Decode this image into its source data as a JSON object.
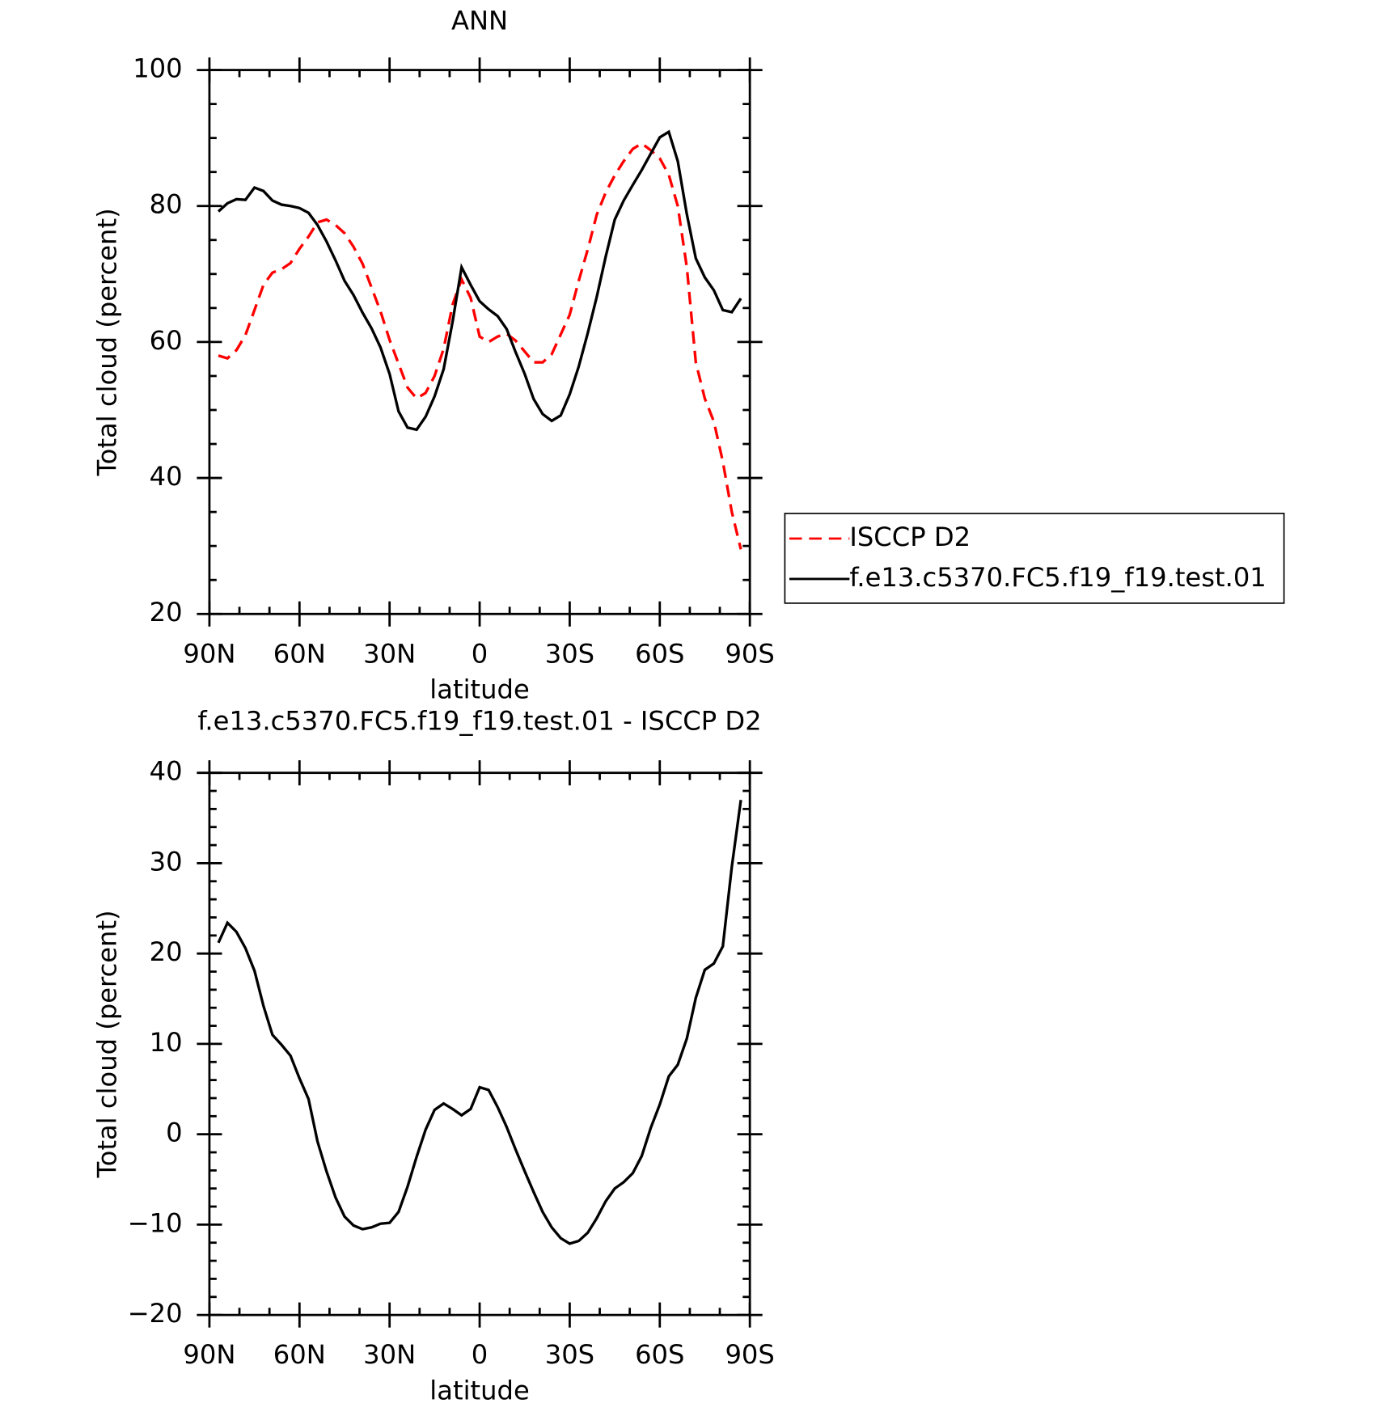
{
  "chart_data": [
    {
      "type": "line",
      "title": "ANN",
      "xlabel": "latitude",
      "ylabel": "Total cloud (percent)",
      "x": [
        87,
        84,
        81,
        78,
        75,
        72,
        69,
        66,
        63,
        60,
        57,
        54,
        51,
        48,
        45,
        42,
        39,
        36,
        33,
        30,
        27,
        24,
        21,
        18,
        15,
        12,
        9,
        6,
        3,
        0,
        -3,
        -6,
        -9,
        -12,
        -15,
        -18,
        -21,
        -24,
        -27,
        -30,
        -33,
        -36,
        -39,
        -42,
        -45,
        -48,
        -51,
        -54,
        -57,
        -60,
        -63,
        -66,
        -69,
        -72,
        -75,
        -78,
        -81,
        -84,
        -87
      ],
      "series": [
        {
          "name": "ISCCP D2",
          "color": "#ff0000",
          "style": "dashed",
          "values": [
            58.0,
            57.6,
            58.8,
            61.0,
            64.7,
            68.4,
            70.2,
            70.7,
            71.6,
            73.7,
            75.5,
            77.6,
            78.0,
            77.2,
            76.0,
            74.0,
            71.5,
            68.0,
            64.5,
            60.3,
            56.8,
            53.3,
            51.7,
            52.5,
            55.0,
            59.0,
            65.5,
            69.2,
            66.5,
            60.8,
            60.0,
            60.8,
            61.2,
            60.2,
            58.6,
            57.0,
            57.0,
            58.2,
            61.1,
            64.0,
            69.0,
            73.6,
            78.7,
            82.0,
            84.5,
            86.6,
            88.4,
            89.2,
            88.2,
            87.0,
            84.6,
            80.0,
            71.0,
            57.0,
            51.7,
            48.3,
            42.4,
            35.0,
            29.5
          ]
        },
        {
          "name": "f.e13.c5370.FC5.f19_f19.test.01",
          "color": "#000000",
          "style": "solid",
          "values": [
            79.2,
            80.4,
            81.0,
            80.9,
            82.7,
            82.2,
            80.8,
            80.2,
            80.0,
            79.7,
            79.0,
            77.2,
            74.8,
            72.0,
            69.0,
            66.9,
            64.3,
            62.0,
            59.2,
            55.3,
            49.8,
            47.4,
            47.1,
            49.0,
            52.0,
            56.0,
            63.0,
            71.0,
            68.4,
            66.0,
            64.8,
            63.8,
            61.9,
            58.5,
            55.3,
            51.6,
            49.4,
            48.4,
            49.2,
            52.3,
            56.4,
            61.3,
            66.6,
            72.6,
            78.0,
            80.8,
            83.1,
            85.3,
            87.7,
            90.1,
            90.9,
            86.6,
            78.8,
            72.3,
            69.5,
            67.6,
            64.7,
            64.4,
            66.4
          ]
        }
      ],
      "xlim": [
        90,
        -90
      ],
      "xticks": [
        {
          "value": 90,
          "label": "90N"
        },
        {
          "value": 60,
          "label": "60N"
        },
        {
          "value": 30,
          "label": "30N"
        },
        0,
        {
          "value": -30,
          "label": "30S"
        },
        {
          "value": -60,
          "label": "60S"
        },
        {
          "value": -90,
          "label": "90S"
        }
      ],
      "ylim": [
        20,
        100
      ],
      "yticks": [
        20,
        40,
        60,
        80,
        100
      ],
      "x_minor_per_major": 3,
      "y_minor_per_major": 4,
      "legend": "outside-right"
    },
    {
      "type": "line",
      "title": "f.e13.c5370.FC5.f19_f19.test.01 - ISCCP D2",
      "xlabel": "latitude",
      "ylabel": "Total cloud (percent)",
      "x": [
        87,
        84,
        81,
        78,
        75,
        72,
        69,
        66,
        63,
        60,
        57,
        54,
        51,
        48,
        45,
        42,
        39,
        36,
        33,
        30,
        27,
        24,
        21,
        18,
        15,
        12,
        9,
        6,
        3,
        0,
        -3,
        -6,
        -9,
        -12,
        -15,
        -18,
        -21,
        -24,
        -27,
        -30,
        -33,
        -36,
        -39,
        -42,
        -45,
        -48,
        -51,
        -54,
        -57,
        -60,
        -63,
        -66,
        -69,
        -72,
        -75,
        -78,
        -81,
        -84,
        -87
      ],
      "color": "#000000",
      "values": [
        21.2,
        23.4,
        22.4,
        20.6,
        18.1,
        14.2,
        11.0,
        9.9,
        8.7,
        6.2,
        3.9,
        -0.8,
        -4.1,
        -7.0,
        -9.1,
        -10.1,
        -10.5,
        -10.3,
        -9.9,
        -9.8,
        -8.6,
        -5.8,
        -2.5,
        0.5,
        2.7,
        3.4,
        2.8,
        2.1,
        2.8,
        5.2,
        4.9,
        3.0,
        0.8,
        -1.7,
        -4.1,
        -6.4,
        -8.6,
        -10.3,
        -11.5,
        -12.1,
        -11.8,
        -10.9,
        -9.3,
        -7.4,
        -6.0,
        -5.3,
        -4.3,
        -2.4,
        0.7,
        3.3,
        6.4,
        7.7,
        10.6,
        15.1,
        18.2,
        18.9,
        20.8,
        29.6,
        37.0
      ],
      "xlim": [
        90,
        -90
      ],
      "xticks": [
        {
          "value": 90,
          "label": "90N"
        },
        {
          "value": 60,
          "label": "60N"
        },
        {
          "value": 30,
          "label": "30N"
        },
        0,
        {
          "value": -30,
          "label": "30S"
        },
        {
          "value": -60,
          "label": "60S"
        },
        {
          "value": -90,
          "label": "90S"
        }
      ],
      "ylim": [
        -20,
        40
      ],
      "yticks": [
        {
          "value": -20,
          "label": "−20"
        },
        {
          "value": -10,
          "label": "−10"
        },
        0,
        10,
        20,
        30,
        40
      ],
      "x_minor_per_major": 3,
      "y_minor_per_major": 5
    }
  ]
}
